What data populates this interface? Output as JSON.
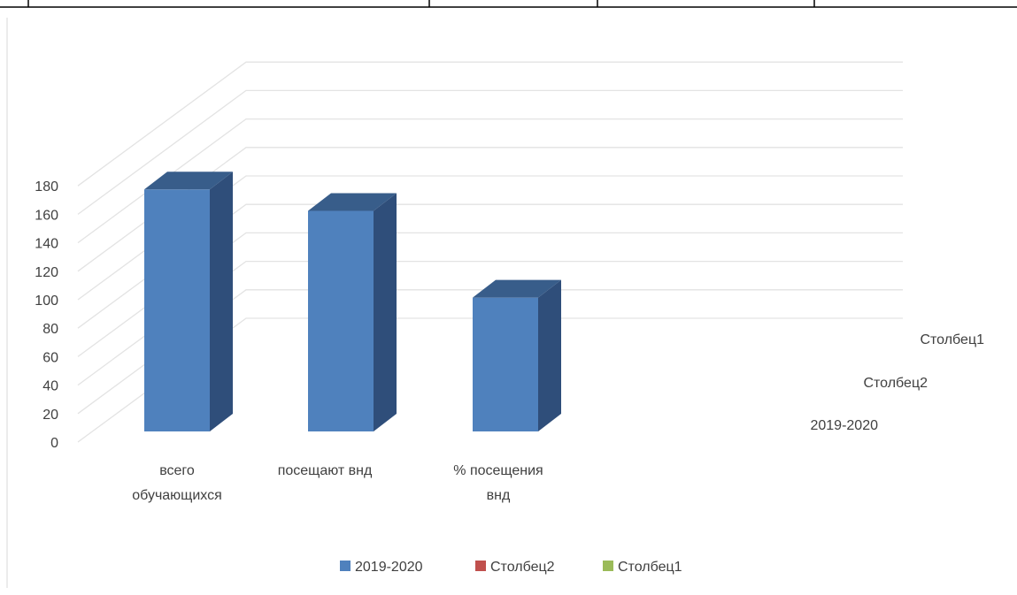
{
  "chart_data": {
    "type": "bar",
    "style": "3d-column",
    "categories": [
      [
        "всего",
        "обучающихся"
      ],
      [
        "посещают внд"
      ],
      [
        "% посещения",
        "внд"
      ]
    ],
    "series": [
      {
        "name": "2019-2020",
        "values": [
          170,
          155,
          94
        ],
        "color": "#4f81bd"
      },
      {
        "name": "Столбец2",
        "values": [
          0,
          0,
          0
        ],
        "color": "#c0504d"
      },
      {
        "name": "Столбец1",
        "values": [
          0,
          0,
          0
        ],
        "color": "#9bbb59"
      }
    ],
    "depth_labels": [
      "Столбец1",
      "Столбец2",
      "2019-2020"
    ],
    "yticks": [
      0,
      20,
      40,
      60,
      80,
      100,
      120,
      140,
      160,
      180
    ],
    "ylim": [
      0,
      180
    ],
    "grid": true,
    "legend": "bottom"
  }
}
